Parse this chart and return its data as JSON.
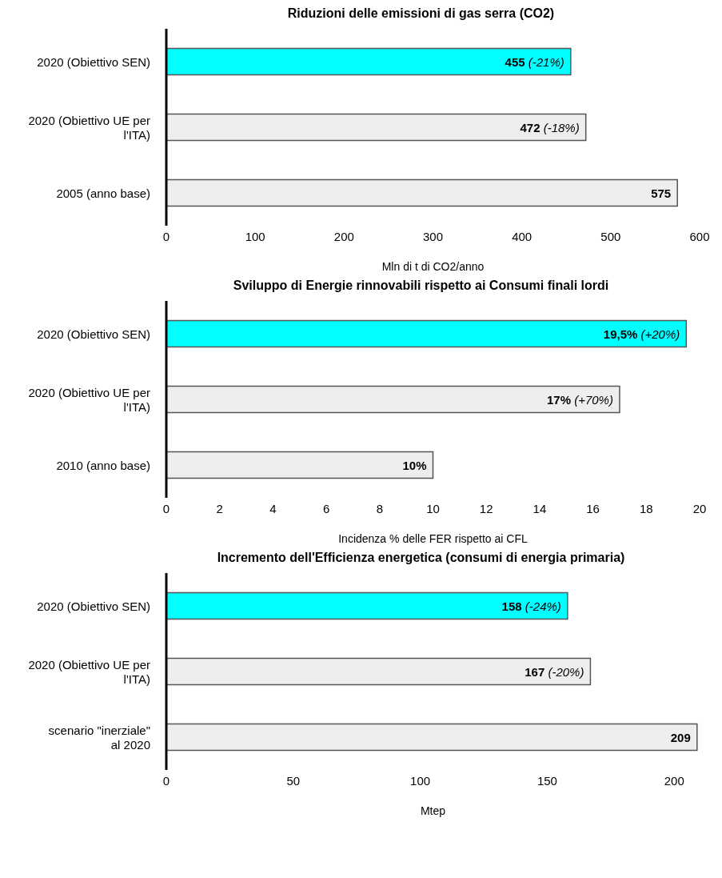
{
  "chart_data": [
    {
      "type": "bar",
      "orientation": "horizontal",
      "title": "Riduzioni delle emissioni di gas serra (CO2)",
      "xlabel": "Mln di t di CO2/anno",
      "categories": [
        "2020 (Obiettivo SEN)",
        "2020 (Obiettivo UE per l'ITA)",
        "2005 (anno base)"
      ],
      "values": [
        455,
        472,
        575
      ],
      "colors": [
        "#00ffff",
        "#eeeeee",
        "#eeeeee"
      ],
      "value_labels": [
        "455 (-21%)",
        "472 (-18%)",
        "575"
      ],
      "xlim": [
        0,
        600
      ],
      "xticks": [
        0,
        100,
        200,
        300,
        400,
        500,
        600
      ],
      "grid": false,
      "legend": false
    },
    {
      "type": "bar",
      "orientation": "horizontal",
      "title": "Sviluppo di Energie rinnovabili rispetto ai Consumi finali lordi",
      "xlabel": "Incidenza % delle FER rispetto ai CFL",
      "categories": [
        "2020 (Obiettivo SEN)",
        "2020 (Obiettivo UE per l'ITA)",
        "2010 (anno base)"
      ],
      "values": [
        19.5,
        17,
        10
      ],
      "colors": [
        "#00ffff",
        "#eeeeee",
        "#eeeeee"
      ],
      "value_labels": [
        "19,5% (+20%)",
        "17% (+70%)",
        "10%"
      ],
      "xlim": [
        0,
        20
      ],
      "xticks": [
        0,
        2,
        4,
        6,
        8,
        10,
        12,
        14,
        16,
        18,
        20
      ],
      "grid": false,
      "legend": false
    },
    {
      "type": "bar",
      "orientation": "horizontal",
      "title": "Incremento dell'Efficienza energetica (consumi di energia primaria)",
      "xlabel": "Mtep",
      "categories": [
        "2020 (Obiettivo SEN)",
        "2020 (Obiettivo UE per l'ITA)",
        "scenario \"inerziale\" al 2020"
      ],
      "values": [
        158,
        167,
        209
      ],
      "colors": [
        "#00ffff",
        "#eeeeee",
        "#eeeeee"
      ],
      "value_labels": [
        "158 (-24%)",
        "167 (-20%)",
        "209"
      ],
      "xlim": [
        0,
        210
      ],
      "xticks": [
        0,
        50,
        100,
        150,
        200
      ],
      "grid": false,
      "legend": false
    }
  ]
}
